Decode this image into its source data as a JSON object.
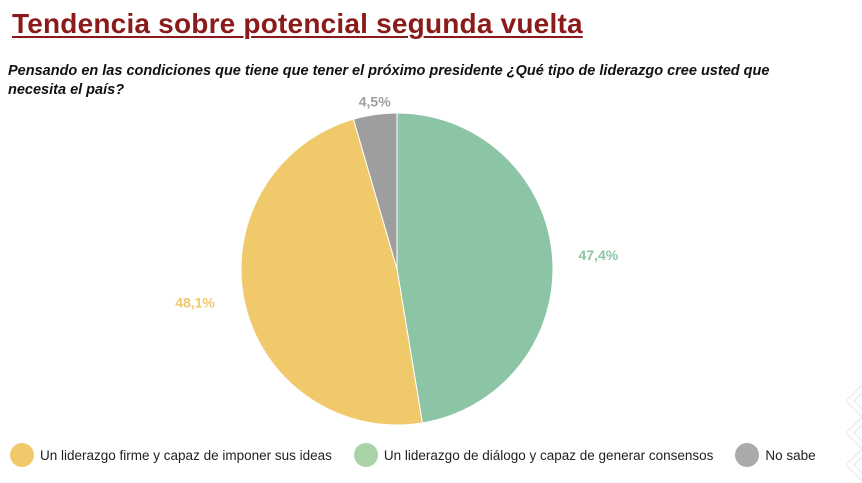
{
  "header": {
    "title": "Tendencia sobre potencial segunda vuelta",
    "question": "Pensando en las condiciones que tiene que tener el próximo presidente ¿Qué tipo de liderazgo cree usted que necesita el país?"
  },
  "chart_data": {
    "type": "pie",
    "title": "",
    "slices": [
      {
        "label": "Un liderazgo de diálogo y capaz de generar consensos",
        "value": 47.4,
        "value_label": "47,4%",
        "color": "#8cc5a5"
      },
      {
        "label": "Un liderazgo firme y capaz de imponer sus ideas",
        "value": 48.1,
        "value_label": "48,1%",
        "color": "#f0c96b"
      },
      {
        "label": "No sabe",
        "value": 4.5,
        "value_label": "4,5%",
        "color": "#9e9e9e"
      }
    ],
    "legend": {
      "placement": "bottom",
      "order": [
        {
          "label": "Un liderazgo firme y capaz de imponer sus ideas",
          "color": "#f0c96b"
        },
        {
          "label": "Un liderazgo de diálogo y capaz de generar consensos",
          "color": "#a9d3a6"
        },
        {
          "label": "No sabe",
          "color": "#aaaaaa"
        }
      ]
    }
  }
}
